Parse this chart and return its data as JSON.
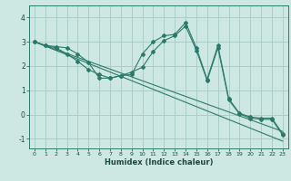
{
  "xlabel": "Humidex (Indice chaleur)",
  "xlim": [
    -0.5,
    23.5
  ],
  "ylim": [
    -1.4,
    4.5
  ],
  "yticks": [
    -1,
    0,
    1,
    2,
    3,
    4
  ],
  "xticks": [
    0,
    1,
    2,
    3,
    4,
    5,
    6,
    7,
    8,
    9,
    10,
    11,
    12,
    13,
    14,
    15,
    16,
    17,
    18,
    19,
    20,
    21,
    22,
    23
  ],
  "bg_color": "#cde8e2",
  "grid_color": "#aacfc8",
  "line_color": "#2a7a6a",
  "lines": [
    {
      "x": [
        0,
        1,
        2,
        3,
        4,
        5,
        6,
        7,
        8,
        9,
        10,
        11,
        12,
        13,
        14,
        15,
        16,
        17,
        18,
        19,
        20,
        21,
        22,
        23
      ],
      "y": [
        3.0,
        2.85,
        2.8,
        2.75,
        2.5,
        2.15,
        1.5,
        1.5,
        1.6,
        1.65,
        2.5,
        3.0,
        3.25,
        3.3,
        3.8,
        2.75,
        1.45,
        2.85,
        0.65,
        0.05,
        -0.1,
        -0.15,
        -0.15,
        -0.8
      ],
      "markers": true
    },
    {
      "x": [
        0,
        1,
        2,
        3,
        4,
        5,
        6,
        7,
        8,
        9,
        10,
        11,
        12,
        13,
        14,
        15,
        16,
        17,
        18,
        19,
        20,
        21,
        22,
        23
      ],
      "y": [
        3.0,
        2.85,
        2.75,
        2.5,
        2.2,
        1.85,
        1.65,
        1.5,
        1.6,
        1.75,
        1.95,
        2.6,
        3.05,
        3.25,
        3.65,
        2.65,
        1.4,
        2.75,
        0.6,
        0.02,
        -0.15,
        -0.2,
        -0.2,
        -0.85
      ],
      "markers": true
    },
    {
      "x": [
        0,
        23
      ],
      "y": [
        3.0,
        -0.7
      ],
      "markers": false
    },
    {
      "x": [
        0,
        23
      ],
      "y": [
        3.0,
        -1.1
      ],
      "markers": false
    }
  ]
}
